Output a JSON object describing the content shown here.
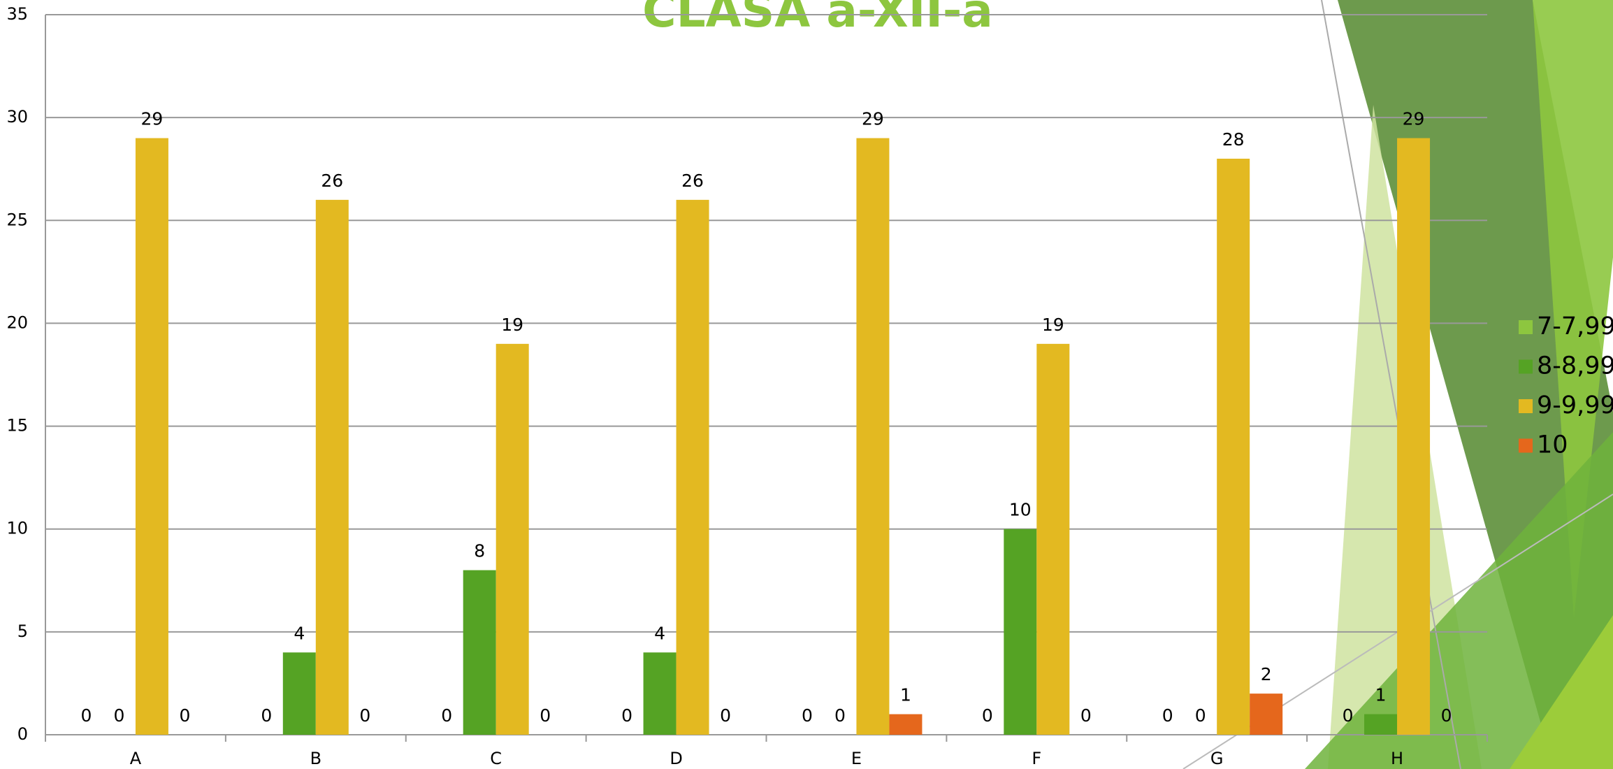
{
  "chart_data": {
    "type": "bar",
    "title": "CLASA a-XII-a",
    "categories": [
      "A",
      "B",
      "C",
      "D",
      "E",
      "F",
      "G",
      "H"
    ],
    "series": [
      {
        "name": "7-7,99",
        "color": "#8dc63f",
        "values": [
          0,
          0,
          0,
          0,
          0,
          0,
          0,
          0
        ]
      },
      {
        "name": "8-8,99",
        "color": "#55a324",
        "values": [
          0,
          4,
          8,
          4,
          0,
          10,
          0,
          1
        ]
      },
      {
        "name": "9-9,99",
        "color": "#e3b921",
        "values": [
          29,
          26,
          19,
          26,
          29,
          19,
          28,
          29
        ]
      },
      {
        "name": "10",
        "color": "#e5671c",
        "values": [
          0,
          0,
          0,
          0,
          1,
          0,
          2,
          0
        ]
      }
    ],
    "ylim": [
      0,
      35
    ],
    "yticks": [
      0,
      5,
      10,
      15,
      20,
      25,
      30,
      35
    ],
    "grid": true,
    "legend": "right"
  }
}
